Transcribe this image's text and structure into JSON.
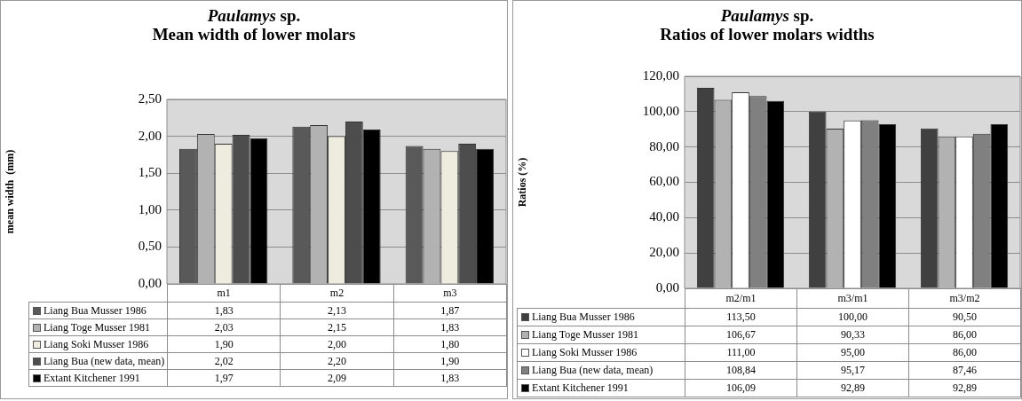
{
  "chart_data": [
    {
      "type": "bar",
      "title": "Paulamys sp.",
      "subtitle": "Mean width of lower molars",
      "ylabel": "mean width  (mm)",
      "categories": [
        "m1",
        "m2",
        "m3"
      ],
      "series": [
        {
          "name": "Liang Bua Musser 1986",
          "color": "#595959",
          "values": [
            1.83,
            2.13,
            1.87
          ],
          "value_labels": [
            "1,83",
            "2,13",
            "1,87"
          ]
        },
        {
          "name": "Liang Toge Musser 1981",
          "color": "#b2b2b2",
          "values": [
            2.03,
            2.15,
            1.83
          ],
          "value_labels": [
            "2,03",
            "2,15",
            "1,83"
          ]
        },
        {
          "name": "Liang Soki Musser 1986",
          "color": "#eeebdf",
          "values": [
            1.9,
            2.0,
            1.8
          ],
          "value_labels": [
            "1,90",
            "2,00",
            "1,80"
          ]
        },
        {
          "name": "Liang Bua (new data, mean)",
          "color": "#4d4d4d",
          "values": [
            2.02,
            2.2,
            1.9
          ],
          "value_labels": [
            "2,02",
            "2,20",
            "1,90"
          ]
        },
        {
          "name": "Extant Kitchener  1991",
          "color": "#000000",
          "values": [
            1.97,
            2.09,
            1.83
          ],
          "value_labels": [
            "1,97",
            "2,09",
            "1,83"
          ]
        }
      ],
      "ylim": [
        0,
        2.5
      ],
      "yticks": [
        {
          "value": 0,
          "label": "0,00"
        },
        {
          "value": 0.5,
          "label": "0,50"
        },
        {
          "value": 1,
          "label": "1,00"
        },
        {
          "value": 1.5,
          "label": "1,50"
        },
        {
          "value": 2,
          "label": "2,00"
        },
        {
          "value": 2.5,
          "label": "2,50"
        }
      ],
      "grid": "y",
      "legend": "bottom"
    },
    {
      "type": "bar",
      "title": "Paulamys sp.",
      "subtitle": "Ratios of lower molars widths",
      "ylabel": "Ratios (%)",
      "categories": [
        "m2/m1",
        "m3/m1",
        "m3/m2"
      ],
      "series": [
        {
          "name": "Liang Bua Musser 1986",
          "color": "#404040",
          "values": [
            113.5,
            100.0,
            90.5
          ],
          "value_labels": [
            "113,50",
            "100,00",
            "90,50"
          ]
        },
        {
          "name": "Liang Toge Musser 1981",
          "color": "#b2b2b2",
          "values": [
            106.67,
            90.33,
            86.0
          ],
          "value_labels": [
            "106,67",
            "90,33",
            "86,00"
          ]
        },
        {
          "name": "Liang Soki Musser 1986",
          "color": "#ffffff",
          "values": [
            111.0,
            95.0,
            86.0
          ],
          "value_labels": [
            "111,00",
            "95,00",
            "86,00"
          ]
        },
        {
          "name": "Liang Bua (new data, mean)",
          "color": "#808080",
          "values": [
            108.84,
            95.17,
            87.46
          ],
          "value_labels": [
            "108,84",
            "95,17",
            "87,46"
          ]
        },
        {
          "name": "Extant Kitchener  1991",
          "color": "#000000",
          "values": [
            106.09,
            92.89,
            92.89
          ],
          "value_labels": [
            "106,09",
            "92,89",
            "92,89"
          ]
        }
      ],
      "ylim": [
        0,
        120
      ],
      "yticks": [
        {
          "value": 0,
          "label": "0,00"
        },
        {
          "value": 20,
          "label": "20,00"
        },
        {
          "value": 40,
          "label": "40,00"
        },
        {
          "value": 60,
          "label": "60,00"
        },
        {
          "value": 80,
          "label": "80,00"
        },
        {
          "value": 100,
          "label": "100,00"
        },
        {
          "value": 120,
          "label": "120,00"
        }
      ],
      "grid": "y",
      "legend": "bottom"
    }
  ]
}
